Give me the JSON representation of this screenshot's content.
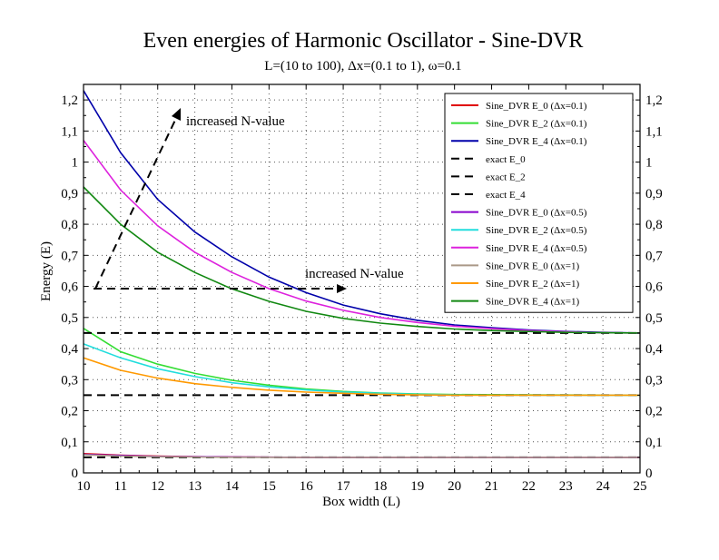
{
  "chart_data": {
    "type": "line",
    "title": "Even energies of Harmonic Oscillator - Sine-DVR",
    "subtitle": "L=(10 to 100), Δx=(0.1 to 1), ω=0.1",
    "xlabel": "Box width (L)",
    "ylabel": "Energy (E)",
    "xlim": [
      10,
      25
    ],
    "ylim": [
      0,
      1.25
    ],
    "x_ticks": [
      "10",
      "11",
      "12",
      "13",
      "14",
      "15",
      "16",
      "17",
      "18",
      "19",
      "20",
      "21",
      "22",
      "23",
      "24",
      "25"
    ],
    "y_ticks": [
      "0",
      "0,1",
      "0,2",
      "0,3",
      "0,4",
      "0,5",
      "0,6",
      "0,7",
      "0,8",
      "0,9",
      "1",
      "1,1",
      "1,2"
    ],
    "grid": true,
    "legend_position": "top-right",
    "annotations": [
      "increased N-value",
      "increased N-value"
    ],
    "series": [
      {
        "name": "Sine_DVR E_0 (Δx=0.1)",
        "color": "#e00000",
        "dash": "solid",
        "x": [
          10,
          11,
          12,
          13,
          14,
          16,
          18,
          20,
          22,
          25
        ],
        "y": [
          0.062,
          0.057,
          0.054,
          0.052,
          0.051,
          0.05,
          0.05,
          0.05,
          0.05,
          0.05
        ]
      },
      {
        "name": "Sine_DVR E_2 (Δx=0.1)",
        "color": "#33dd33",
        "dash": "solid",
        "x": [
          10,
          11,
          12,
          13,
          14,
          15,
          16,
          17,
          18,
          19,
          20,
          22,
          25
        ],
        "y": [
          0.465,
          0.39,
          0.35,
          0.32,
          0.298,
          0.282,
          0.27,
          0.262,
          0.257,
          0.254,
          0.252,
          0.251,
          0.25
        ]
      },
      {
        "name": "Sine_DVR E_4 (Δx=0.1)",
        "color": "#0000aa",
        "dash": "solid",
        "x": [
          10,
          11,
          12,
          13,
          14,
          15,
          16,
          17,
          18,
          19,
          20,
          21,
          22,
          23,
          24,
          25
        ],
        "y": [
          1.23,
          1.03,
          0.88,
          0.775,
          0.695,
          0.63,
          0.58,
          0.54,
          0.512,
          0.491,
          0.476,
          0.467,
          0.46,
          0.455,
          0.452,
          0.45
        ]
      },
      {
        "name": "exact E_0",
        "color": "#000000",
        "dash": "dashed",
        "x": [
          10,
          25
        ],
        "y": [
          0.05,
          0.05
        ]
      },
      {
        "name": "exact E_2",
        "color": "#000000",
        "dash": "dashed",
        "x": [
          10,
          25
        ],
        "y": [
          0.25,
          0.25
        ]
      },
      {
        "name": "exact E_4",
        "color": "#000000",
        "dash": "dashed",
        "x": [
          10,
          25
        ],
        "y": [
          0.45,
          0.45
        ]
      },
      {
        "name": "Sine_DVR E_0 (Δx=0.5)",
        "color": "#8800cc",
        "dash": "solid",
        "x": [
          10,
          11,
          12,
          13,
          14,
          16,
          18,
          20,
          22,
          25
        ],
        "y": [
          0.06,
          0.056,
          0.053,
          0.052,
          0.051,
          0.05,
          0.05,
          0.05,
          0.05,
          0.05
        ]
      },
      {
        "name": "Sine_DVR E_2 (Δx=0.5)",
        "color": "#22dddd",
        "dash": "solid",
        "x": [
          10,
          11,
          12,
          13,
          14,
          15,
          16,
          17,
          18,
          19,
          20,
          22,
          25
        ],
        "y": [
          0.415,
          0.37,
          0.335,
          0.31,
          0.29,
          0.277,
          0.267,
          0.26,
          0.256,
          0.253,
          0.251,
          0.25,
          0.25
        ]
      },
      {
        "name": "Sine_DVR E_4 (Δx=0.5)",
        "color": "#dd22dd",
        "dash": "solid",
        "x": [
          10,
          11,
          12,
          13,
          14,
          15,
          16,
          17,
          18,
          19,
          20,
          21,
          22,
          23,
          24,
          25
        ],
        "y": [
          1.07,
          0.91,
          0.795,
          0.71,
          0.645,
          0.593,
          0.553,
          0.523,
          0.5,
          0.484,
          0.472,
          0.464,
          0.458,
          0.454,
          0.451,
          0.45
        ]
      },
      {
        "name": "Sine_DVR E_0 (Δx=1)",
        "color": "#aa9988",
        "dash": "solid",
        "x": [
          10,
          11,
          12,
          13,
          14,
          16,
          18,
          20,
          22,
          25
        ],
        "y": [
          0.058,
          0.054,
          0.052,
          0.051,
          0.05,
          0.05,
          0.05,
          0.05,
          0.05,
          0.05
        ]
      },
      {
        "name": "Sine_DVR E_2 (Δx=1)",
        "color": "#ff9900",
        "dash": "solid",
        "x": [
          10,
          11,
          12,
          13,
          14,
          15,
          16,
          17,
          18,
          19,
          20,
          22,
          25
        ],
        "y": [
          0.37,
          0.33,
          0.305,
          0.287,
          0.275,
          0.266,
          0.26,
          0.256,
          0.253,
          0.251,
          0.25,
          0.25,
          0.25
        ]
      },
      {
        "name": "Sine_DVR E_4 (Δx=1)",
        "color": "#118811",
        "dash": "solid",
        "x": [
          10,
          11,
          12,
          13,
          14,
          15,
          16,
          17,
          18,
          19,
          20,
          21,
          22,
          23,
          24,
          25
        ],
        "y": [
          0.92,
          0.8,
          0.71,
          0.645,
          0.592,
          0.552,
          0.52,
          0.497,
          0.482,
          0.471,
          0.463,
          0.458,
          0.455,
          0.452,
          0.451,
          0.45
        ]
      }
    ]
  }
}
